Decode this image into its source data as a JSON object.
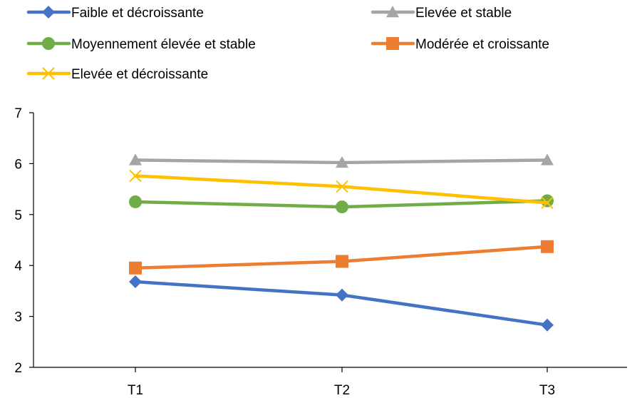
{
  "chart_data": {
    "type": "line",
    "title": "",
    "xlabel": "",
    "ylabel": "",
    "categories": [
      "T1",
      "T2",
      "T3"
    ],
    "ylim": [
      2,
      7
    ],
    "yticks": [
      2,
      3,
      4,
      5,
      6,
      7
    ],
    "grid": false,
    "legend": "top",
    "series": [
      {
        "name": "Faible et décroissante",
        "color": "#4472C4",
        "marker": "diamond",
        "values": [
          3.68,
          3.42,
          2.83
        ]
      },
      {
        "name": "Elevée et stable",
        "color": "#A5A5A5",
        "marker": "triangle",
        "values": [
          6.07,
          6.02,
          6.07
        ]
      },
      {
        "name": "Moyennement élevée et stable",
        "color": "#70AD47",
        "marker": "circle",
        "values": [
          5.25,
          5.15,
          5.27
        ]
      },
      {
        "name": "Modérée et croissante",
        "color": "#ED7D31",
        "marker": "square",
        "values": [
          3.95,
          4.08,
          4.37
        ]
      },
      {
        "name": "Elevée et décroissante",
        "color": "#FFC000",
        "marker": "x",
        "values": [
          5.76,
          5.55,
          5.23
        ]
      }
    ]
  }
}
